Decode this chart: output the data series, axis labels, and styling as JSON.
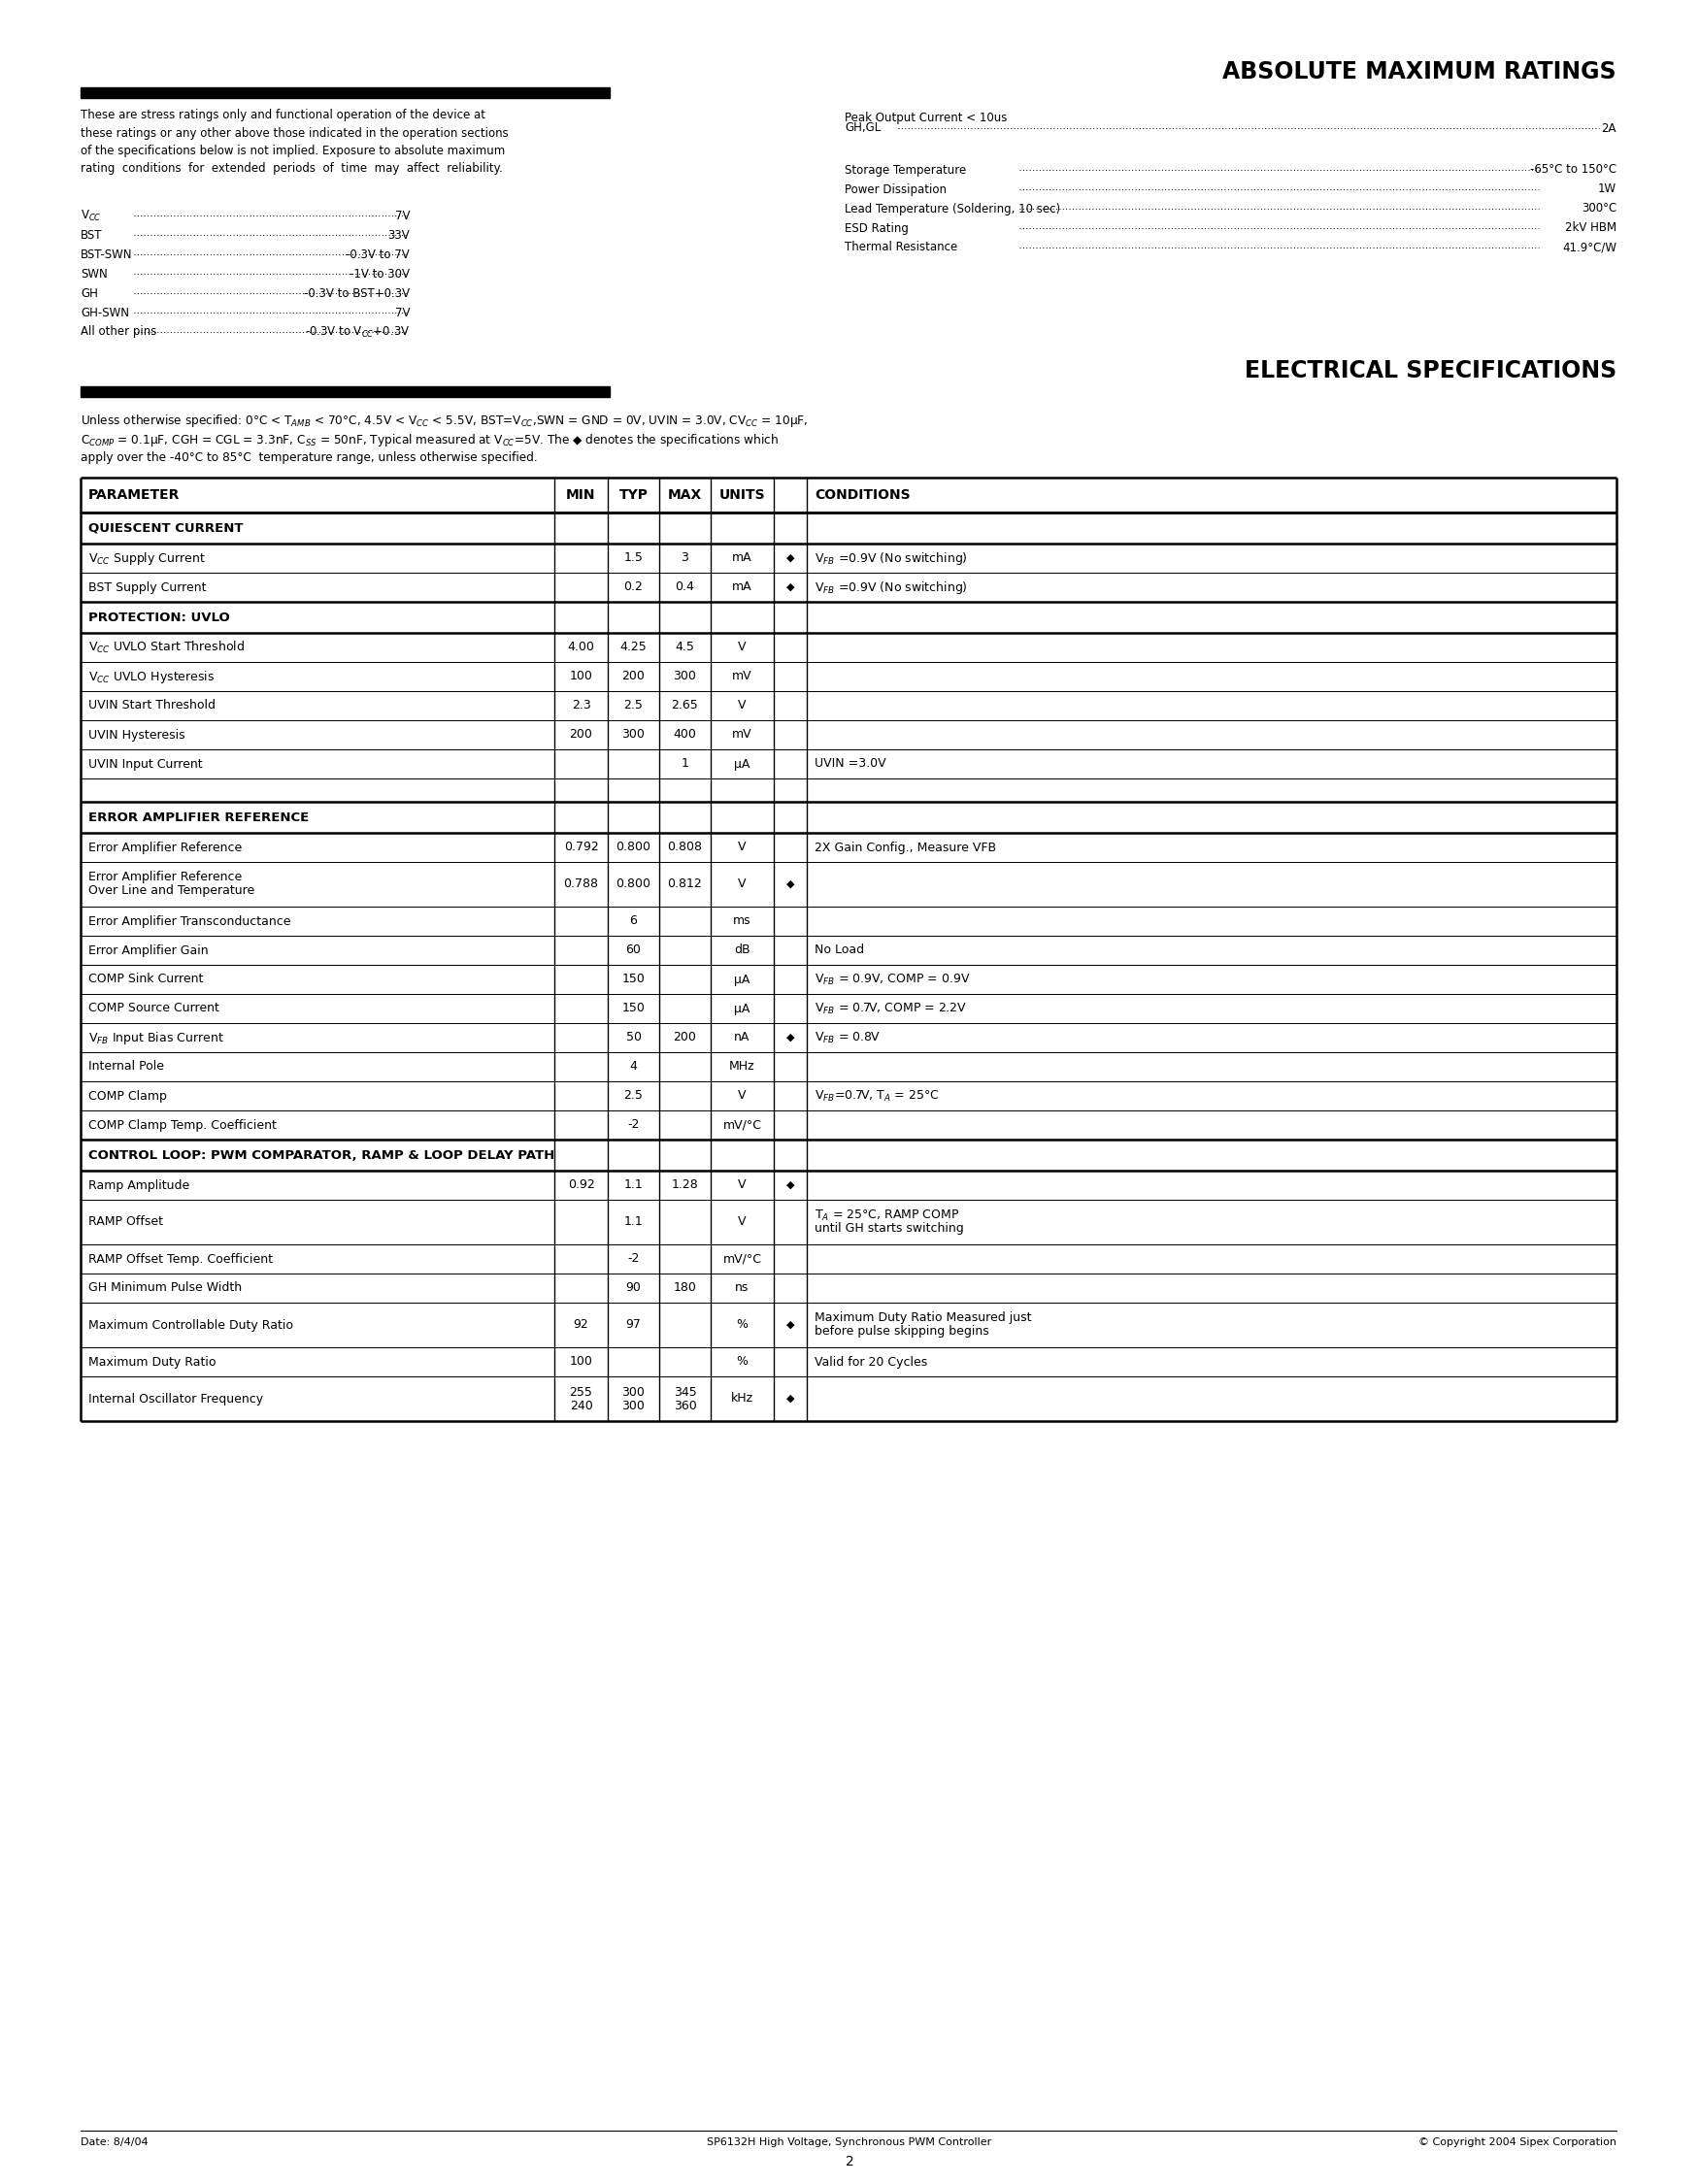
{
  "page_bg": "#ffffff",
  "title1": "ABSOLUTE MAXIMUM RATINGS",
  "title2": "ELECTRICAL SPECIFICATIONS",
  "footer_left": "Date: 8/4/04",
  "footer_center": "SP6132H High Voltage, Synchronous PWM Controller",
  "footer_right": "© Copyright 2004 Sipex Corporation",
  "footer_page": "2",
  "pin_names": [
    "V$_{CC}$",
    "BST",
    "BST-SWN",
    "SWN",
    "GH",
    "GH-SWN",
    "All other pins"
  ],
  "pin_vals": [
    "7V",
    "33V",
    "-0.3V to 7V",
    "-1V to 30V",
    "-0.3V to BST+0.3V",
    "7V",
    "-0.3V to V$_{CC}$+0.3V"
  ],
  "right_block1_title": "Peak Output Current < 10us",
  "right_block1": [
    [
      "GH,GL",
      "2A"
    ]
  ],
  "right_block2": [
    [
      "Storage Temperature",
      "-65°C to 150°C"
    ],
    [
      "Power Dissipation",
      "1W"
    ],
    [
      "Lead Temperature (Soldering, 10 sec)",
      "300°C"
    ],
    [
      "ESD Rating",
      "2kV HBM"
    ],
    [
      "Thermal Resistance",
      "41.9°C/W"
    ]
  ],
  "note_line1": "Unless otherwise specified: 0°C < T$_{AMB}$ < 70°C, 4.5V < V$_{CC}$ < 5.5V, BST=V$_{CC}$,SWN = GND = 0V, UVIN = 3.0V, CV$_{CC}$ = 10μF,",
  "note_line2": "C$_{COMP}$ = 0.1μF, CGH = CGL = 3.3nF, C$_{SS}$ = 50nF, Typical measured at V$_{CC}$=5V. The ◆ denotes the specifications which",
  "note_line3": "apply over the -40°C to 85°C  temperature range, unless otherwise specified.",
  "table_rows": [
    {
      "type": "section",
      "label": "QUIESCENT CURRENT"
    },
    {
      "type": "data",
      "param": "V$_{CC}$ Supply Current",
      "min": "",
      "typ": "1.5",
      "max": "3",
      "units": "mA",
      "diamond": true,
      "cond": "V$_{FB}$ =0.9V (No switching)"
    },
    {
      "type": "data",
      "param": "BST Supply Current",
      "min": "",
      "typ": "0.2",
      "max": "0.4",
      "units": "mA",
      "diamond": true,
      "cond": "V$_{FB}$ =0.9V (No switching)"
    },
    {
      "type": "section",
      "label": "PROTECTION: UVLO"
    },
    {
      "type": "data",
      "param": "V$_{CC}$ UVLO Start Threshold",
      "min": "4.00",
      "typ": "4.25",
      "max": "4.5",
      "units": "V",
      "diamond": false,
      "cond": ""
    },
    {
      "type": "data",
      "param": "V$_{CC}$ UVLO Hysteresis",
      "min": "100",
      "typ": "200",
      "max": "300",
      "units": "mV",
      "diamond": false,
      "cond": ""
    },
    {
      "type": "data",
      "param": "UVIN Start Threshold",
      "min": "2.3",
      "typ": "2.5",
      "max": "2.65",
      "units": "V",
      "diamond": false,
      "cond": ""
    },
    {
      "type": "data",
      "param": "UVIN Hysteresis",
      "min": "200",
      "typ": "300",
      "max": "400",
      "units": "mV",
      "diamond": false,
      "cond": ""
    },
    {
      "type": "data",
      "param": "UVIN Input Current",
      "min": "",
      "typ": "",
      "max": "1",
      "units": "μA",
      "diamond": false,
      "cond": "UVIN =3.0V"
    },
    {
      "type": "spacer"
    },
    {
      "type": "section",
      "label": "ERROR AMPLIFIER REFERENCE"
    },
    {
      "type": "data",
      "param": "Error Amplifier Reference",
      "min": "0.792",
      "typ": "0.800",
      "max": "0.808",
      "units": "V",
      "diamond": false,
      "cond": "2X Gain Config., Measure VFB"
    },
    {
      "type": "data2",
      "param": "Error Amplifier Reference\nOver Line and Temperature",
      "min": "0.788",
      "typ": "0.800",
      "max": "0.812",
      "units": "V",
      "diamond": true,
      "cond": ""
    },
    {
      "type": "data",
      "param": "Error Amplifier Transconductance",
      "min": "",
      "typ": "6",
      "max": "",
      "units": "ms",
      "diamond": false,
      "cond": ""
    },
    {
      "type": "data",
      "param": "Error Amplifier Gain",
      "min": "",
      "typ": "60",
      "max": "",
      "units": "dB",
      "diamond": false,
      "cond": "No Load"
    },
    {
      "type": "data",
      "param": "COMP Sink Current",
      "min": "",
      "typ": "150",
      "max": "",
      "units": "μA",
      "diamond": false,
      "cond": "V$_{FB}$ = 0.9V, COMP = 0.9V"
    },
    {
      "type": "data",
      "param": "COMP Source Current",
      "min": "",
      "typ": "150",
      "max": "",
      "units": "μA",
      "diamond": false,
      "cond": "V$_{FB}$ = 0.7V, COMP = 2.2V"
    },
    {
      "type": "data",
      "param": "V$_{FB}$ Input Bias Current",
      "min": "",
      "typ": "50",
      "max": "200",
      "units": "nA",
      "diamond": true,
      "cond": "V$_{FB}$ = 0.8V"
    },
    {
      "type": "data",
      "param": "Internal Pole",
      "min": "",
      "typ": "4",
      "max": "",
      "units": "MHz",
      "diamond": false,
      "cond": ""
    },
    {
      "type": "data",
      "param": "COMP Clamp",
      "min": "",
      "typ": "2.5",
      "max": "",
      "units": "V",
      "diamond": false,
      "cond": "V$_{FB}$=0.7V, T$_A$ = 25°C"
    },
    {
      "type": "data",
      "param": "COMP Clamp Temp. Coefficient",
      "min": "",
      "typ": "-2",
      "max": "",
      "units": "mV/°C",
      "diamond": false,
      "cond": ""
    },
    {
      "type": "section",
      "label": "CONTROL LOOP: PWM COMPARATOR, RAMP & LOOP DELAY PATH"
    },
    {
      "type": "data",
      "param": "Ramp Amplitude",
      "min": "0.92",
      "typ": "1.1",
      "max": "1.28",
      "units": "V",
      "diamond": true,
      "cond": ""
    },
    {
      "type": "data2",
      "param": "RAMP Offset",
      "min": "",
      "typ": "1.1",
      "max": "",
      "units": "V",
      "diamond": false,
      "cond": "T$_A$ = 25°C, RAMP COMP\nuntil GH starts switching"
    },
    {
      "type": "data",
      "param": "RAMP Offset Temp. Coefficient",
      "min": "",
      "typ": "-2",
      "max": "",
      "units": "mV/°C",
      "diamond": false,
      "cond": ""
    },
    {
      "type": "data",
      "param": "GH Minimum Pulse Width",
      "min": "",
      "typ": "90",
      "max": "180",
      "units": "ns",
      "diamond": false,
      "cond": ""
    },
    {
      "type": "data2",
      "param": "Maximum Controllable Duty Ratio",
      "min": "92",
      "typ": "97",
      "max": "",
      "units": "%",
      "diamond": true,
      "cond": "Maximum Duty Ratio Measured just\nbefore pulse skipping begins"
    },
    {
      "type": "data",
      "param": "Maximum Duty Ratio",
      "min": "100",
      "typ": "",
      "max": "",
      "units": "%",
      "diamond": false,
      "cond": "Valid for 20 Cycles"
    },
    {
      "type": "data2",
      "param": "Internal Oscillator Frequency",
      "min": "255\n240",
      "typ": "300\n300",
      "max": "345\n360",
      "units": "kHz",
      "diamond": true,
      "cond": ""
    }
  ]
}
